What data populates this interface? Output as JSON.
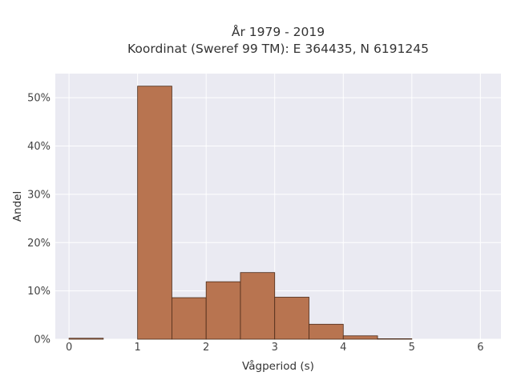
{
  "chart_data": {
    "type": "bar",
    "title_line1": "År 1979 - 2019",
    "title_line2": "Koordinat (Sweref 99 TM): E 364435, N 6191245",
    "xlabel": "Vågperiod (s)",
    "ylabel": "Andel",
    "xlim": [
      -0.2,
      6.3
    ],
    "ylim": [
      0,
      55
    ],
    "x_ticks": [
      0,
      1,
      2,
      3,
      4,
      5,
      6
    ],
    "y_ticks": [
      0,
      10,
      20,
      30,
      40,
      50
    ],
    "y_tick_labels": [
      "0%",
      "10%",
      "20%",
      "30%",
      "40%",
      "50%"
    ],
    "bins": [
      {
        "x0": 0.0,
        "x1": 0.5,
        "value": 0.2
      },
      {
        "x0": 1.0,
        "x1": 1.5,
        "value": 52.4
      },
      {
        "x0": 1.5,
        "x1": 2.0,
        "value": 8.6
      },
      {
        "x0": 2.0,
        "x1": 2.5,
        "value": 11.9
      },
      {
        "x0": 2.5,
        "x1": 3.0,
        "value": 13.8
      },
      {
        "x0": 3.0,
        "x1": 3.5,
        "value": 8.7
      },
      {
        "x0": 3.5,
        "x1": 4.0,
        "value": 3.1
      },
      {
        "x0": 4.0,
        "x1": 4.5,
        "value": 0.7
      },
      {
        "x0": 4.5,
        "x1": 5.0,
        "value": 0.1
      }
    ],
    "grid": true,
    "colors": {
      "bar_fill": "#b87450",
      "bar_edge": "#4a2a18",
      "plot_bg": "#eaeaf2",
      "grid": "#ffffff"
    }
  }
}
